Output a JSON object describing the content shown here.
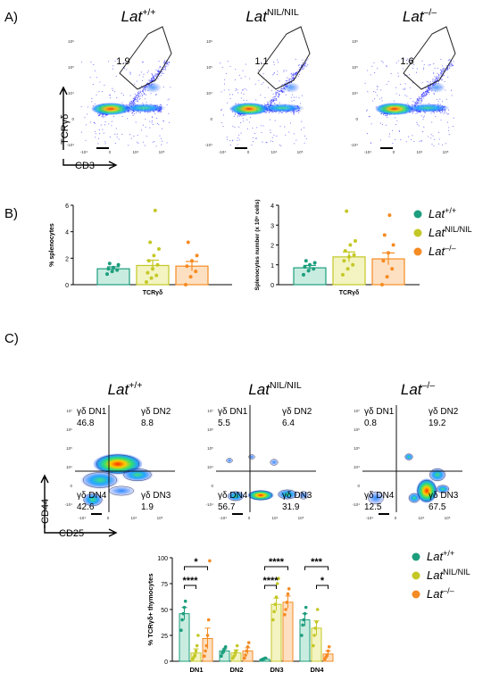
{
  "panels": {
    "A": {
      "label": "A)"
    },
    "B": {
      "label": "B)"
    },
    "C": {
      "label": "C)"
    }
  },
  "genotypes": [
    {
      "base": "Lat",
      "sup": "+/+"
    },
    {
      "base": "Lat",
      "sup": "NIL/NIL"
    },
    {
      "base": "Lat",
      "sup": "–/–"
    }
  ],
  "colors": {
    "wt": "#1d9e7e",
    "nil": "#c4c826",
    "ko": "#f58b23"
  },
  "panelA": {
    "gate_values": [
      "1.9",
      "1.1",
      "1.6"
    ],
    "y_axis_label": "TCRγδ",
    "x_axis_label": "CD3",
    "x_ticks": [
      "-10⁴",
      "0",
      "10⁴",
      "10⁵"
    ],
    "y_ticks": [
      "10⁶",
      "10⁵",
      "10⁴",
      "0",
      "-10⁴"
    ]
  },
  "panelC_flow": {
    "y_axis_label": "CD44",
    "x_axis_label": "CD25",
    "quadrant_labels": [
      "γδ DN1",
      "γδ DN2",
      "γδ DN4",
      "γδ DN3"
    ],
    "quadrants": [
      [
        "46.8",
        "8.8",
        "42.6",
        "1.9"
      ],
      [
        "5.5",
        "6.4",
        "56.7",
        "31.9"
      ],
      [
        "0.8",
        "19.2",
        "12.5",
        "67.5"
      ]
    ],
    "x_ticks": [
      "-10⁴",
      "0",
      "10⁴",
      "10⁵"
    ],
    "y_ticks": [
      "10⁷",
      "10⁶",
      "10⁵",
      "10⁴",
      "0",
      "-10⁴"
    ]
  },
  "chart_data": [
    {
      "type": "bar",
      "ylabel": "% splenocytes",
      "categories": [
        "TCRγδ"
      ],
      "ylim": [
        0,
        6
      ],
      "yticks": [
        "0",
        "2",
        "4",
        "6"
      ],
      "series": [
        {
          "name": "Lat+/+",
          "mean": 1.2,
          "sem": 0.15,
          "points": [
            0.8,
            1.0,
            1.1,
            1.2,
            1.3,
            1.5,
            1.6
          ]
        },
        {
          "name": "LatNIL/NIL",
          "mean": 1.45,
          "sem": 0.4,
          "points": [
            0.2,
            0.5,
            0.7,
            0.9,
            1.2,
            1.5,
            1.8,
            2.2,
            2.7,
            3.2,
            5.6
          ]
        },
        {
          "name": "Lat–/–",
          "mean": 1.4,
          "sem": 0.35,
          "points": [
            0.0,
            0.6,
            1.0,
            1.4,
            1.8,
            2.2,
            3.2
          ]
        }
      ]
    },
    {
      "type": "bar",
      "ylabel": "Splenocytes number (x 10⁶ cells)",
      "categories": [
        "TCRγδ"
      ],
      "ylim": [
        0,
        4
      ],
      "yticks": [
        "0",
        "1",
        "2",
        "3",
        "4"
      ],
      "series": [
        {
          "name": "Lat+/+",
          "mean": 0.85,
          "sem": 0.12,
          "points": [
            0.5,
            0.7,
            0.8,
            0.9,
            1.0,
            1.1,
            1.2
          ]
        },
        {
          "name": "LatNIL/NIL",
          "mean": 1.4,
          "sem": 0.25,
          "points": [
            0.5,
            0.8,
            1.0,
            1.2,
            1.4,
            1.5,
            1.7,
            2.0,
            2.2,
            3.7
          ]
        },
        {
          "name": "Lat–/–",
          "mean": 1.3,
          "sem": 0.3,
          "points": [
            0.0,
            0.4,
            0.8,
            1.2,
            1.6,
            2.0,
            2.5,
            3.5
          ]
        }
      ]
    },
    {
      "type": "bar",
      "ylabel": "% TCRγδ+ thymocytes",
      "categories": [
        "DN1",
        "DN2",
        "DN3",
        "DN4"
      ],
      "ylim": [
        0,
        100
      ],
      "yticks": [
        "0",
        "25",
        "50",
        "75",
        "100"
      ],
      "series": [
        {
          "name": "Lat+/+",
          "means": [
            46,
            10,
            2,
            40
          ],
          "sems": [
            6,
            2,
            0.5,
            6
          ],
          "points": [
            [
              30,
              40,
              46,
              52,
              58
            ],
            [
              5,
              8,
              10,
              12,
              14
            ],
            [
              1,
              2,
              2,
              3,
              3
            ],
            [
              25,
              35,
              40,
              46,
              52
            ]
          ]
        },
        {
          "name": "LatNIL/NIL",
          "means": [
            8,
            8,
            55,
            32
          ],
          "sems": [
            4,
            3,
            6,
            7
          ],
          "points": [
            [
              2,
              4,
              6,
              10,
              15,
              25
            ],
            [
              3,
              5,
              8,
              10,
              15
            ],
            [
              40,
              48,
              55,
              62,
              75,
              80
            ],
            [
              15,
              25,
              32,
              38,
              50
            ]
          ]
        },
        {
          "name": "Lat–/–",
          "means": [
            22,
            10,
            57,
            7
          ],
          "sems": [
            10,
            3,
            6,
            3
          ],
          "points": [
            [
              5,
              10,
              15,
              25,
              40,
              97
            ],
            [
              3,
              6,
              10,
              14,
              18
            ],
            [
              45,
              50,
              57,
              65,
              70
            ],
            [
              2,
              4,
              6,
              10,
              14
            ]
          ]
        }
      ],
      "significance": [
        {
          "group": "DN1",
          "pair": "wt-ko",
          "label": "*"
        },
        {
          "group": "DN1",
          "pair": "wt-nil",
          "label": "****"
        },
        {
          "group": "DN3",
          "pair": "wt-ko",
          "label": "****"
        },
        {
          "group": "DN3",
          "pair": "wt-nil",
          "label": "****"
        },
        {
          "group": "DN4",
          "pair": "wt-ko",
          "label": "***"
        },
        {
          "group": "DN4",
          "pair": "nil-ko",
          "label": "*"
        }
      ]
    }
  ]
}
